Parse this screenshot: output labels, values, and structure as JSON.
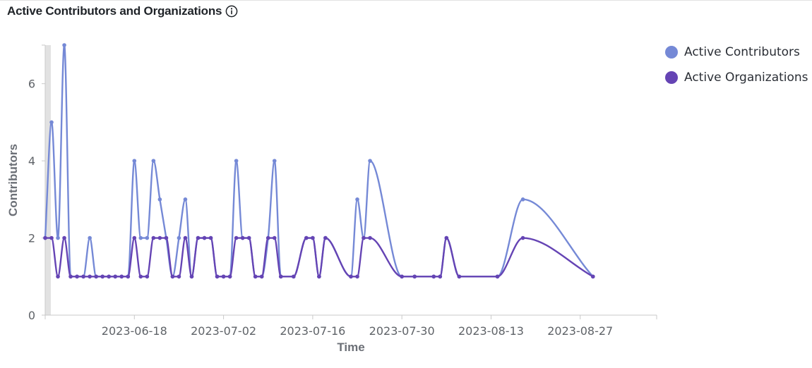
{
  "header": {
    "title": "Active Contributors and Organizations",
    "info_icon": "info-icon"
  },
  "colors": {
    "contributors": "#7589d6",
    "organizations": "#6544b4",
    "axis": "#c9c9c9",
    "tick_text": "#5f6368"
  },
  "chart_data": {
    "type": "line",
    "title": "Active Contributors and Organizations",
    "xlabel": "Time",
    "ylabel": "Contributors",
    "ylim": [
      0,
      7
    ],
    "yticks": [
      0,
      2,
      4,
      6
    ],
    "xlim": [
      "2023-06-04",
      "2023-09-08"
    ],
    "xticks": [
      "2023-06-18",
      "2023-07-02",
      "2023-07-16",
      "2023-07-30",
      "2023-08-13",
      "2023-08-27"
    ],
    "grid": false,
    "legend": "top-right",
    "series": [
      {
        "name": "Active Contributors",
        "color": "#7589d6",
        "points": [
          [
            "2023-06-04",
            2
          ],
          [
            "2023-06-05",
            5
          ],
          [
            "2023-06-06",
            2
          ],
          [
            "2023-06-07",
            7
          ],
          [
            "2023-06-08",
            1
          ],
          [
            "2023-06-09",
            1
          ],
          [
            "2023-06-10",
            1
          ],
          [
            "2023-06-11",
            2
          ],
          [
            "2023-06-12",
            1
          ],
          [
            "2023-06-13",
            1
          ],
          [
            "2023-06-14",
            1
          ],
          [
            "2023-06-15",
            1
          ],
          [
            "2023-06-16",
            1
          ],
          [
            "2023-06-17",
            1
          ],
          [
            "2023-06-18",
            4
          ],
          [
            "2023-06-19",
            2
          ],
          [
            "2023-06-20",
            2
          ],
          [
            "2023-06-21",
            4
          ],
          [
            "2023-06-22",
            3
          ],
          [
            "2023-06-23",
            2
          ],
          [
            "2023-06-24",
            1
          ],
          [
            "2023-06-25",
            2
          ],
          [
            "2023-06-26",
            3
          ],
          [
            "2023-06-27",
            1
          ],
          [
            "2023-06-28",
            2
          ],
          [
            "2023-06-29",
            2
          ],
          [
            "2023-06-30",
            2
          ],
          [
            "2023-07-01",
            1
          ],
          [
            "2023-07-02",
            1
          ],
          [
            "2023-07-03",
            1
          ],
          [
            "2023-07-04",
            4
          ],
          [
            "2023-07-05",
            2
          ],
          [
            "2023-07-06",
            2
          ],
          [
            "2023-07-07",
            1
          ],
          [
            "2023-07-08",
            1
          ],
          [
            "2023-07-09",
            2
          ],
          [
            "2023-07-10",
            4
          ],
          [
            "2023-07-11",
            1
          ],
          [
            "2023-07-13",
            1
          ],
          [
            "2023-07-15",
            2
          ],
          [
            "2023-07-16",
            2
          ],
          [
            "2023-07-17",
            1
          ],
          [
            "2023-07-18",
            2
          ],
          [
            "2023-07-22",
            1
          ],
          [
            "2023-07-23",
            3
          ],
          [
            "2023-07-24",
            2
          ],
          [
            "2023-07-25",
            4
          ],
          [
            "2023-07-30",
            1
          ],
          [
            "2023-08-01",
            1
          ],
          [
            "2023-08-04",
            1
          ],
          [
            "2023-08-05",
            1
          ],
          [
            "2023-08-06",
            2
          ],
          [
            "2023-08-08",
            1
          ],
          [
            "2023-08-14",
            1
          ],
          [
            "2023-08-18",
            3
          ],
          [
            "2023-08-29",
            1
          ]
        ]
      },
      {
        "name": "Active Organizations",
        "color": "#6544b4",
        "points": [
          [
            "2023-06-04",
            2
          ],
          [
            "2023-06-05",
            2
          ],
          [
            "2023-06-06",
            1
          ],
          [
            "2023-06-07",
            2
          ],
          [
            "2023-06-08",
            1
          ],
          [
            "2023-06-09",
            1
          ],
          [
            "2023-06-10",
            1
          ],
          [
            "2023-06-11",
            1
          ],
          [
            "2023-06-12",
            1
          ],
          [
            "2023-06-13",
            1
          ],
          [
            "2023-06-14",
            1
          ],
          [
            "2023-06-15",
            1
          ],
          [
            "2023-06-16",
            1
          ],
          [
            "2023-06-17",
            1
          ],
          [
            "2023-06-18",
            2
          ],
          [
            "2023-06-19",
            1
          ],
          [
            "2023-06-20",
            1
          ],
          [
            "2023-06-21",
            2
          ],
          [
            "2023-06-22",
            2
          ],
          [
            "2023-06-23",
            2
          ],
          [
            "2023-06-24",
            1
          ],
          [
            "2023-06-25",
            1
          ],
          [
            "2023-06-26",
            2
          ],
          [
            "2023-06-27",
            1
          ],
          [
            "2023-06-28",
            2
          ],
          [
            "2023-06-29",
            2
          ],
          [
            "2023-06-30",
            2
          ],
          [
            "2023-07-01",
            1
          ],
          [
            "2023-07-02",
            1
          ],
          [
            "2023-07-03",
            1
          ],
          [
            "2023-07-04",
            2
          ],
          [
            "2023-07-05",
            2
          ],
          [
            "2023-07-06",
            2
          ],
          [
            "2023-07-07",
            1
          ],
          [
            "2023-07-08",
            1
          ],
          [
            "2023-07-09",
            2
          ],
          [
            "2023-07-10",
            2
          ],
          [
            "2023-07-11",
            1
          ],
          [
            "2023-07-13",
            1
          ],
          [
            "2023-07-15",
            2
          ],
          [
            "2023-07-16",
            2
          ],
          [
            "2023-07-17",
            1
          ],
          [
            "2023-07-18",
            2
          ],
          [
            "2023-07-22",
            1
          ],
          [
            "2023-07-23",
            1
          ],
          [
            "2023-07-24",
            2
          ],
          [
            "2023-07-25",
            2
          ],
          [
            "2023-07-30",
            1
          ],
          [
            "2023-08-01",
            1
          ],
          [
            "2023-08-04",
            1
          ],
          [
            "2023-08-05",
            1
          ],
          [
            "2023-08-06",
            2
          ],
          [
            "2023-08-08",
            1
          ],
          [
            "2023-08-14",
            1
          ],
          [
            "2023-08-18",
            2
          ],
          [
            "2023-08-29",
            1
          ]
        ]
      }
    ]
  }
}
